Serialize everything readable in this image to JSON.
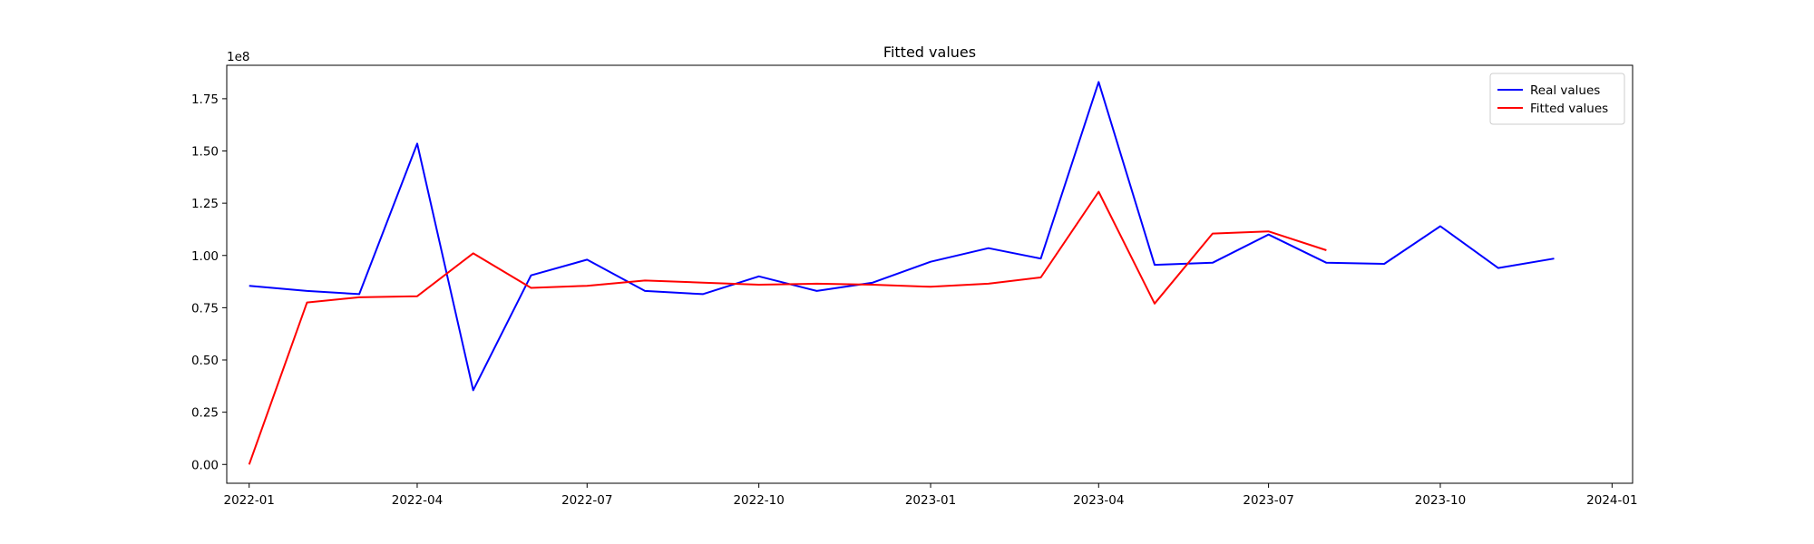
{
  "chart_data": {
    "type": "line",
    "title": "Fitted values",
    "xlabel": "",
    "ylabel": "",
    "y_offset_label": "1e8",
    "y_multiplier": 100000000,
    "x_ticks": [
      "2022-01",
      "2022-04",
      "2022-07",
      "2022-10",
      "2023-01",
      "2023-04",
      "2023-07",
      "2023-10",
      "2024-01"
    ],
    "y_ticks": [
      "0.00",
      "0.25",
      "0.50",
      "0.75",
      "1.00",
      "1.25",
      "1.50",
      "1.75"
    ],
    "xlim": [
      "2021-12-20",
      "2024-01-12"
    ],
    "ylim": [
      -0.09,
      1.91
    ],
    "grid": false,
    "legend_position": "top-right",
    "series": [
      {
        "name": "Real values",
        "color": "#0000ff",
        "x": [
          "2022-01-01",
          "2022-02-01",
          "2022-03-01",
          "2022-04-01",
          "2022-05-01",
          "2022-06-01",
          "2022-07-01",
          "2022-08-01",
          "2022-09-01",
          "2022-10-01",
          "2022-11-01",
          "2022-12-01",
          "2023-01-01",
          "2023-02-01",
          "2023-03-01",
          "2023-04-01",
          "2023-05-01",
          "2023-06-01",
          "2023-07-01",
          "2023-08-01",
          "2023-09-01",
          "2023-10-01",
          "2023-11-01",
          "2023-12-01"
        ],
        "y": [
          0.855,
          0.83,
          0.815,
          1.535,
          0.355,
          0.905,
          0.98,
          0.83,
          0.815,
          0.9,
          0.83,
          0.87,
          0.97,
          1.035,
          0.985,
          1.83,
          0.955,
          0.965,
          1.1,
          0.965,
          0.96,
          1.14,
          0.94,
          0.985
        ]
      },
      {
        "name": "Fitted values",
        "color": "#ff0000",
        "x": [
          "2022-01-01",
          "2022-02-01",
          "2022-03-01",
          "2022-04-01",
          "2022-05-01",
          "2022-06-01",
          "2022-07-01",
          "2022-08-01",
          "2022-09-01",
          "2022-10-01",
          "2022-11-01",
          "2022-12-01",
          "2023-01-01",
          "2023-02-01",
          "2023-03-01",
          "2023-04-01",
          "2023-05-01",
          "2023-06-01",
          "2023-07-01",
          "2023-08-01"
        ],
        "y": [
          0.0,
          0.775,
          0.8,
          0.805,
          1.01,
          0.845,
          0.855,
          0.88,
          0.87,
          0.86,
          0.865,
          0.86,
          0.85,
          0.865,
          0.895,
          1.305,
          0.77,
          1.105,
          1.115,
          1.025
        ]
      }
    ]
  }
}
